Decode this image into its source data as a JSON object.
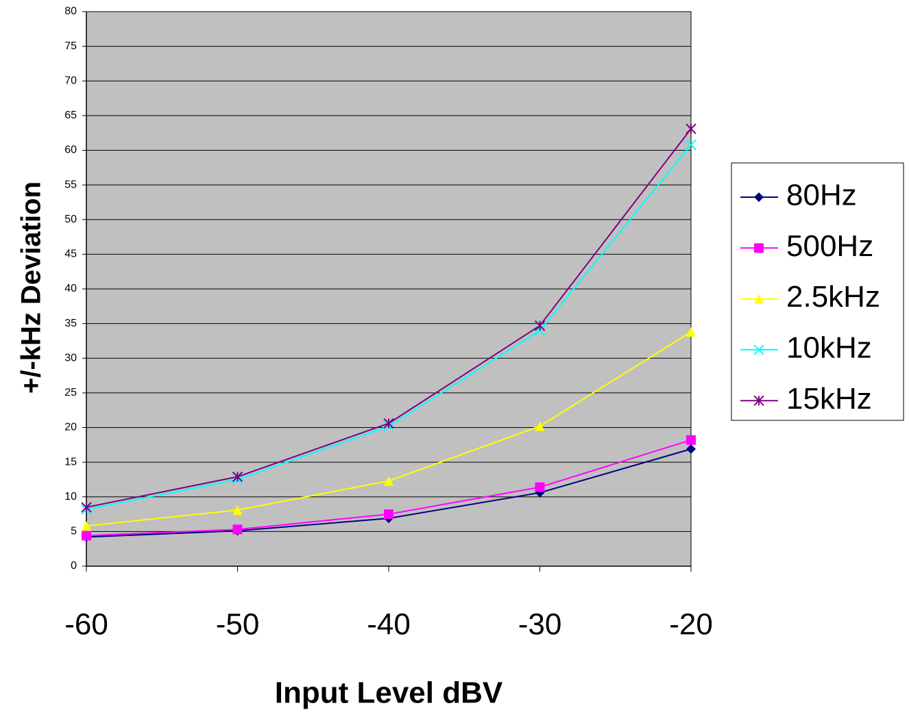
{
  "chart_data": {
    "type": "line",
    "x_label": "Input Level dBV",
    "y_label": "+/-kHz Deviation",
    "x": [
      -60,
      -50,
      -40,
      -30,
      -20
    ],
    "xlim": [
      -60,
      -20
    ],
    "xticks": [
      -60,
      -50,
      -40,
      -30,
      -20
    ],
    "ylim": [
      0,
      80
    ],
    "yticks": [
      0,
      5,
      10,
      15,
      20,
      25,
      30,
      35,
      40,
      45,
      50,
      55,
      60,
      65,
      70,
      75,
      80
    ],
    "grid": true,
    "legend": "right",
    "plot_background": "#c0c0c0",
    "series": [
      {
        "name": "80Hz",
        "color": "#000080",
        "marker": "diamond",
        "values": [
          4.2,
          5.1,
          6.9,
          10.6,
          16.9
        ]
      },
      {
        "name": "500Hz",
        "color": "#ff00ff",
        "marker": "square",
        "values": [
          4.4,
          5.3,
          7.5,
          11.4,
          18.2
        ]
      },
      {
        "name": "2.5kHz",
        "color": "#ffff00",
        "marker": "triangle",
        "values": [
          5.8,
          8.1,
          12.3,
          20.2,
          33.8
        ]
      },
      {
        "name": "10kHz",
        "color": "#00ffff",
        "marker": "x",
        "values": [
          8.2,
          12.5,
          20.2,
          34.0,
          60.8
        ]
      },
      {
        "name": "15kHz",
        "color": "#800080",
        "marker": "star",
        "values": [
          8.5,
          12.9,
          20.6,
          34.7,
          63.1
        ]
      }
    ]
  }
}
